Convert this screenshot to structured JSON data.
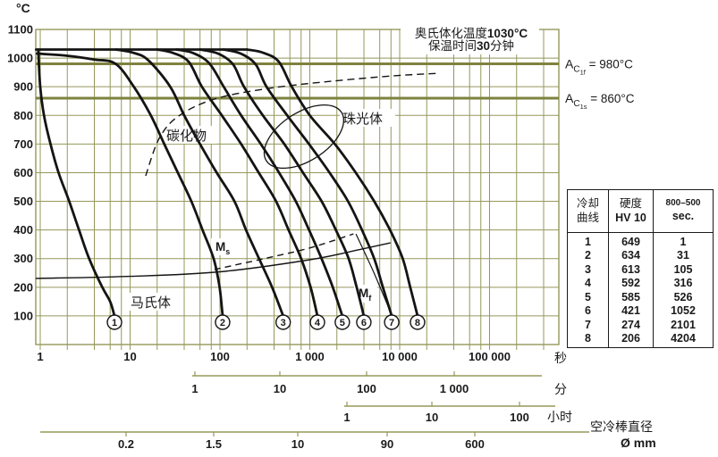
{
  "figure": {
    "y_axis_unit": "°C",
    "title_lines": [
      {
        "parts": [
          {
            "t": "奥氏体化温度",
            "b": 0
          },
          {
            "t": "1030°C",
            "b": 1
          }
        ]
      },
      {
        "parts": [
          {
            "t": "保温时间",
            "b": 0
          },
          {
            "t": "30",
            "b": 1
          },
          {
            "t": "分钟",
            "b": 0
          }
        ]
      }
    ],
    "reference_lines": [
      {
        "sym": "A",
        "sub": "C",
        "subsub": "1f",
        "val": " = 980°C",
        "temp": 980
      },
      {
        "sym": "A",
        "sub": "C",
        "subsub": "1s",
        "val": " = 860°C",
        "temp": 860
      }
    ],
    "phase_labels": {
      "carbide": "碳化物",
      "pearlite": "珠光体",
      "martensite": "马氏体"
    },
    "ms_label": {
      "sym": "M",
      "sub": "s"
    },
    "mf_label": {
      "sym": "M",
      "sub": "f"
    },
    "axes": {
      "seconds": {
        "unit": "秒",
        "ticks": [
          {
            "v": 1,
            "l": "1"
          },
          {
            "v": 10,
            "l": "10"
          },
          {
            "v": 100,
            "l": "100"
          },
          {
            "v": 1000,
            "l": "1 000"
          },
          {
            "v": 10000,
            "l": "10 000"
          },
          {
            "v": 100000,
            "l": "100 000"
          }
        ]
      },
      "minutes": {
        "unit": "分",
        "ticks": [
          {
            "x": 218,
            "l": "1"
          },
          {
            "x": 313,
            "l": "10"
          },
          {
            "x": 410,
            "l": "100"
          },
          {
            "x": 508,
            "l": "1 000"
          }
        ]
      },
      "hours": {
        "unit": "小时",
        "ticks": [
          {
            "x": 388,
            "l": "1"
          },
          {
            "x": 483,
            "l": "10"
          },
          {
            "x": 581,
            "l": "100"
          }
        ]
      },
      "diameter": {
        "label1": "空冷棒直径",
        "label2": "Ø mm",
        "ticks": [
          {
            "x": 141,
            "l": "0.2"
          },
          {
            "x": 239,
            "l": "1.5"
          },
          {
            "x": 333,
            "l": "10"
          },
          {
            "x": 433,
            "l": "90"
          },
          {
            "x": 531,
            "l": "600"
          }
        ]
      }
    }
  },
  "chart_data": {
    "type": "line",
    "x_axis": "time, log scale — parallel scales: seconds / minutes / hours, plus air-cooled bar diameter Ø mm",
    "ylabel": "°C",
    "ylim": [
      0,
      1100
    ],
    "xlim_seconds": [
      0.9,
      600000
    ],
    "y_ticks": [
      1100,
      1000,
      900,
      800,
      700,
      600,
      500,
      400,
      300,
      200,
      100
    ],
    "austenitize_line": {
      "temp": 1030,
      "t": [
        0.9,
        200
      ]
    },
    "curves": [
      {
        "id": "1",
        "points": [
          [
            0.95,
            1030
          ],
          [
            1.0,
            900
          ],
          [
            1.1,
            800
          ],
          [
            1.3,
            700
          ],
          [
            1.6,
            600
          ],
          [
            2.1,
            500
          ],
          [
            2.7,
            400
          ],
          [
            3.5,
            300
          ],
          [
            4.9,
            200
          ],
          [
            6.0,
            150
          ],
          [
            6.7,
            100
          ]
        ]
      },
      {
        "id": "2",
        "points": [
          [
            0.92,
            1016
          ],
          [
            2,
            1008
          ],
          [
            4,
            995
          ],
          [
            6.9,
            980
          ],
          [
            11,
            900
          ],
          [
            17,
            800
          ],
          [
            24,
            700
          ],
          [
            34,
            600
          ],
          [
            48,
            500
          ],
          [
            64,
            400
          ],
          [
            85,
            300
          ],
          [
            99,
            200
          ],
          [
            107,
            100
          ]
        ]
      },
      {
        "id": "3",
        "points": [
          [
            7,
            1030
          ],
          [
            11,
            1018
          ],
          [
            16,
            992
          ],
          [
            28,
            900
          ],
          [
            40,
            800
          ],
          [
            60,
            700
          ],
          [
            92,
            600
          ],
          [
            145,
            500
          ],
          [
            195,
            400
          ],
          [
            272,
            300
          ],
          [
            380,
            200
          ],
          [
            505,
            100
          ]
        ]
      },
      {
        "id": "4",
        "points": [
          [
            20,
            1030
          ],
          [
            30,
            1018
          ],
          [
            45,
            987
          ],
          [
            63,
            900
          ],
          [
            105,
            800
          ],
          [
            172,
            700
          ],
          [
            270,
            600
          ],
          [
            421,
            500
          ],
          [
            580,
            400
          ],
          [
            800,
            300
          ],
          [
            1020,
            200
          ],
          [
            1215,
            100
          ]
        ]
      },
      {
        "id": "5",
        "points": [
          [
            33,
            1030
          ],
          [
            50,
            1018
          ],
          [
            76,
            982
          ],
          [
            110,
            900
          ],
          [
            172,
            800
          ],
          [
            285,
            700
          ],
          [
            455,
            600
          ],
          [
            698,
            500
          ],
          [
            980,
            400
          ],
          [
            1350,
            300
          ],
          [
            1800,
            200
          ],
          [
            2300,
            100
          ]
        ]
      },
      {
        "id": "6",
        "points": [
          [
            60,
            1030
          ],
          [
            95,
            1016
          ],
          [
            140,
            978
          ],
          [
            185,
            900
          ],
          [
            300,
            800
          ],
          [
            520,
            700
          ],
          [
            840,
            600
          ],
          [
            1352,
            500
          ],
          [
            1950,
            400
          ],
          [
            2700,
            300
          ],
          [
            3320,
            200
          ],
          [
            3990,
            100
          ]
        ]
      },
      {
        "id": "7",
        "points": [
          [
            110,
            1030
          ],
          [
            170,
            1016
          ],
          [
            250,
            978
          ],
          [
            330,
            900
          ],
          [
            560,
            800
          ],
          [
            980,
            700
          ],
          [
            1660,
            600
          ],
          [
            2661,
            500
          ],
          [
            3800,
            400
          ],
          [
            5200,
            300
          ],
          [
            6500,
            200
          ],
          [
            8150,
            100
          ]
        ]
      },
      {
        "id": "8",
        "points": [
          [
            200,
            1030
          ],
          [
            300,
            1019
          ],
          [
            450,
            988
          ],
          [
            630,
            900
          ],
          [
            1000,
            800
          ],
          [
            1900,
            700
          ],
          [
            3250,
            600
          ],
          [
            5204,
            500
          ],
          [
            7800,
            400
          ],
          [
            10800,
            300
          ],
          [
            13100,
            200
          ],
          [
            15800,
            100
          ]
        ]
      }
    ],
    "ms_line": {
      "points": [
        [
          0.89,
          231
        ],
        [
          10,
          238
        ],
        [
          100,
          254
        ],
        [
          1000,
          296
        ],
        [
          3400,
          330
        ],
        [
          7900,
          355
        ]
      ]
    },
    "ms_dashed": {
      "points": [
        [
          87,
          262
        ],
        [
          273,
          296
        ],
        [
          990,
          337
        ],
        [
          3060,
          386
        ]
      ]
    },
    "mf_line": {
      "points": [
        [
          3260,
          386
        ],
        [
          5140,
          252
        ],
        [
          7790,
          118
        ]
      ]
    },
    "carbide_dashed": {
      "points": [
        [
          14.9,
          589
        ],
        [
          21.1,
          720
        ],
        [
          34.8,
          798
        ],
        [
          87,
          857
        ],
        [
          345,
          894
        ],
        [
          1710,
          919
        ],
        [
          8460,
          938
        ],
        [
          26900,
          947
        ]
      ]
    },
    "pearlite_ellipse": {
      "t": 860,
      "temp": 726,
      "rx": 50,
      "ry": 27,
      "rotate": -33
    }
  },
  "table": {
    "headers": [
      {
        "lines": [
          "冷却",
          "曲线"
        ],
        "styles": [
          "",
          ""
        ]
      },
      {
        "lines": [
          "硬度",
          "HV 10"
        ],
        "styles": [
          "",
          "bold"
        ]
      },
      {
        "lines": [
          "800–500",
          "sec."
        ],
        "styles": [
          "small",
          "bold"
        ]
      }
    ],
    "rows": [
      [
        "1",
        "649",
        "1"
      ],
      [
        "2",
        "634",
        "31"
      ],
      [
        "3",
        "613",
        "105"
      ],
      [
        "4",
        "592",
        "316"
      ],
      [
        "5",
        "585",
        "526"
      ],
      [
        "6",
        "421",
        "1052"
      ],
      [
        "7",
        "274",
        "2101"
      ],
      [
        "8",
        "206",
        "4204"
      ]
    ]
  },
  "colors": {
    "grid": "#95985a",
    "grid_strong": "#7f823e",
    "curve": "#141414",
    "text": "#1a1a1a",
    "bg": "#ffffff"
  }
}
